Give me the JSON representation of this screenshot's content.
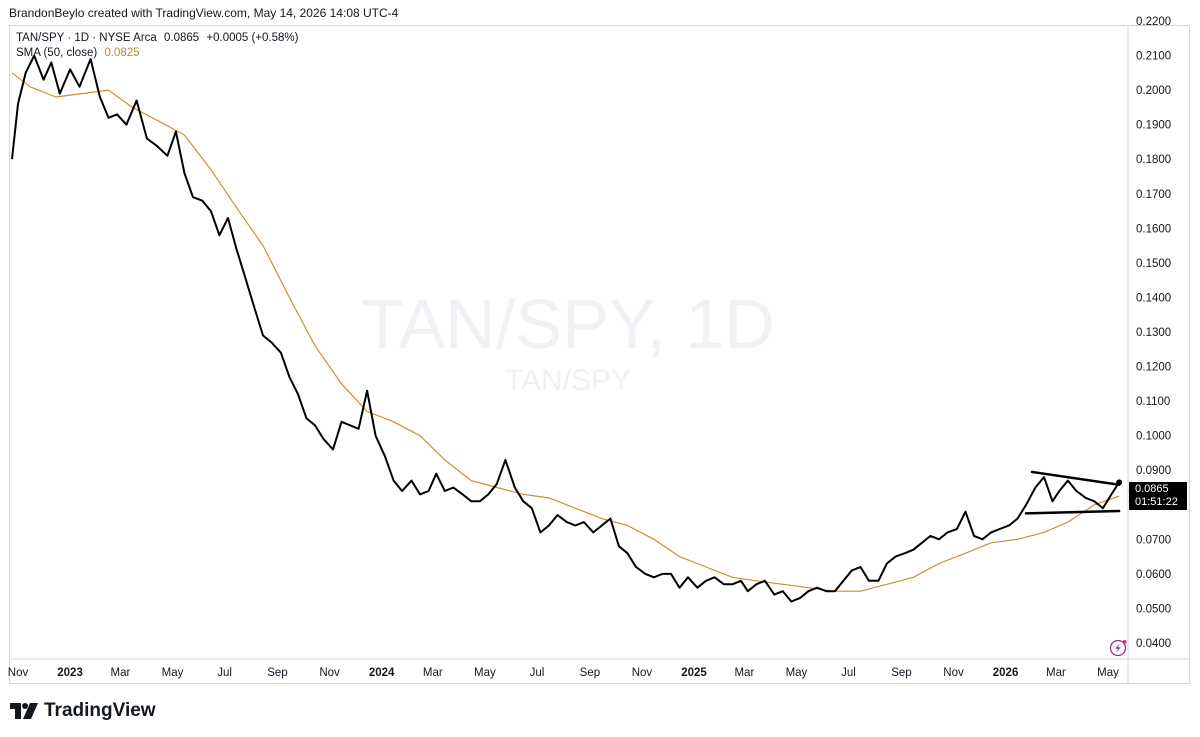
{
  "header": {
    "credit": "BrandonBeylo created with TradingView.com, May 14, 2026 14:08 UTC-4"
  },
  "legend": {
    "symbol_line": "TAN/SPY · 1D · NYSE Arca",
    "last": "0.0865",
    "change": "+0.0005 (+0.58%)",
    "sma_label": "SMA (50, close)",
    "sma_value": "0.0825"
  },
  "watermark": {
    "main": "TAN/SPY, 1D",
    "sub": "TAN/SPY"
  },
  "price_tag": {
    "price": "0.0865",
    "countdown": "01:51:22"
  },
  "footer": {
    "brand": "TradingView"
  },
  "colors": {
    "price_line": "#000000",
    "sma_line": "#c8913a",
    "grid": "#e0e3eb",
    "axis_text": "#131722"
  },
  "chart_data": {
    "type": "line",
    "title": "TAN/SPY · 1D · NYSE Arca",
    "xlabel": "",
    "ylabel": "",
    "ylim": [
      0.035,
      0.225
    ],
    "y_ticks": [
      "0.2200",
      "0.2100",
      "0.2000",
      "0.1900",
      "0.1800",
      "0.1700",
      "0.1600",
      "0.1500",
      "0.1400",
      "0.1300",
      "0.1200",
      "0.1100",
      "0.1000",
      "0.0900",
      "0.0800",
      "0.0700",
      "0.0600",
      "0.0500",
      "0.0400"
    ],
    "x_ticks": [
      "Nov",
      "2023",
      "Mar",
      "May",
      "Jul",
      "Sep",
      "Nov",
      "2024",
      "Mar",
      "May",
      "Jul",
      "Sep",
      "Nov",
      "2025",
      "Mar",
      "May",
      "Jul",
      "Sep",
      "Nov",
      "2026",
      "Mar",
      "May"
    ],
    "x_tick_dates": [
      "2022-11-01",
      "2023-01-01",
      "2023-03-01",
      "2023-05-01",
      "2023-07-01",
      "2023-09-01",
      "2023-11-01",
      "2024-01-01",
      "2024-03-01",
      "2024-05-01",
      "2024-07-01",
      "2024-09-01",
      "2024-11-01",
      "2025-01-01",
      "2025-03-01",
      "2025-05-01",
      "2025-07-01",
      "2025-09-01",
      "2025-11-01",
      "2026-01-01",
      "2026-03-01",
      "2026-05-01"
    ],
    "grid": false,
    "series": [
      {
        "name": "TAN/SPY",
        "x": [
          "2022-10-25",
          "2022-11-01",
          "2022-11-10",
          "2022-11-20",
          "2022-12-01",
          "2022-12-10",
          "2022-12-20",
          "2023-01-01",
          "2023-01-12",
          "2023-01-25",
          "2023-02-05",
          "2023-02-15",
          "2023-02-25",
          "2023-03-08",
          "2023-03-20",
          "2023-04-01",
          "2023-04-12",
          "2023-04-25",
          "2023-05-05",
          "2023-05-15",
          "2023-05-25",
          "2023-06-05",
          "2023-06-15",
          "2023-06-25",
          "2023-07-05",
          "2023-07-15",
          "2023-07-25",
          "2023-08-05",
          "2023-08-15",
          "2023-08-25",
          "2023-09-05",
          "2023-09-15",
          "2023-09-25",
          "2023-10-05",
          "2023-10-15",
          "2023-10-25",
          "2023-11-05",
          "2023-11-15",
          "2023-11-25",
          "2023-12-05",
          "2023-12-15",
          "2023-12-25",
          "2024-01-05",
          "2024-01-15",
          "2024-01-25",
          "2024-02-05",
          "2024-02-15",
          "2024-02-25",
          "2024-03-05",
          "2024-03-15",
          "2024-03-25",
          "2024-04-05",
          "2024-04-15",
          "2024-04-25",
          "2024-05-05",
          "2024-05-15",
          "2024-05-25",
          "2024-06-05",
          "2024-06-15",
          "2024-06-25",
          "2024-07-05",
          "2024-07-15",
          "2024-07-25",
          "2024-08-05",
          "2024-08-15",
          "2024-08-25",
          "2024-09-05",
          "2024-09-15",
          "2024-09-25",
          "2024-10-05",
          "2024-10-15",
          "2024-10-25",
          "2024-11-05",
          "2024-11-15",
          "2024-11-25",
          "2024-12-05",
          "2024-12-15",
          "2024-12-25",
          "2025-01-05",
          "2025-01-15",
          "2025-01-25",
          "2025-02-05",
          "2025-02-15",
          "2025-02-25",
          "2025-03-05",
          "2025-03-15",
          "2025-03-25",
          "2025-04-05",
          "2025-04-15",
          "2025-04-25",
          "2025-05-05",
          "2025-05-15",
          "2025-05-25",
          "2025-06-05",
          "2025-06-15",
          "2025-06-25",
          "2025-07-05",
          "2025-07-15",
          "2025-07-25",
          "2025-08-05",
          "2025-08-15",
          "2025-08-25",
          "2025-09-05",
          "2025-09-15",
          "2025-09-25",
          "2025-10-05",
          "2025-10-15",
          "2025-10-25",
          "2025-11-05",
          "2025-11-15",
          "2025-11-25",
          "2025-12-05",
          "2025-12-15",
          "2025-12-25",
          "2026-01-05",
          "2026-01-15",
          "2026-01-25",
          "2026-02-05",
          "2026-02-15",
          "2026-02-25",
          "2026-03-05",
          "2026-03-15",
          "2026-03-25",
          "2026-04-05",
          "2026-04-15",
          "2026-04-25",
          "2026-05-05",
          "2026-05-14"
        ],
        "values": [
          0.18,
          0.196,
          0.205,
          0.21,
          0.203,
          0.208,
          0.199,
          0.206,
          0.201,
          0.209,
          0.198,
          0.192,
          0.193,
          0.19,
          0.197,
          0.186,
          0.184,
          0.181,
          0.188,
          0.176,
          0.169,
          0.168,
          0.165,
          0.158,
          0.163,
          0.154,
          0.146,
          0.137,
          0.129,
          0.127,
          0.124,
          0.117,
          0.112,
          0.105,
          0.103,
          0.099,
          0.096,
          0.104,
          0.103,
          0.102,
          0.113,
          0.1,
          0.094,
          0.087,
          0.084,
          0.087,
          0.083,
          0.084,
          0.089,
          0.084,
          0.085,
          0.083,
          0.081,
          0.081,
          0.083,
          0.086,
          0.093,
          0.085,
          0.081,
          0.079,
          0.072,
          0.074,
          0.077,
          0.075,
          0.074,
          0.075,
          0.072,
          0.074,
          0.076,
          0.068,
          0.066,
          0.062,
          0.06,
          0.059,
          0.06,
          0.06,
          0.056,
          0.059,
          0.056,
          0.058,
          0.059,
          0.057,
          0.057,
          0.058,
          0.055,
          0.057,
          0.058,
          0.054,
          0.055,
          0.052,
          0.053,
          0.055,
          0.056,
          0.055,
          0.055,
          0.058,
          0.061,
          0.062,
          0.058,
          0.058,
          0.063,
          0.065,
          0.066,
          0.067,
          0.069,
          0.071,
          0.07,
          0.072,
          0.073,
          0.078,
          0.071,
          0.07,
          0.072,
          0.073,
          0.074,
          0.076,
          0.08,
          0.085,
          0.088,
          0.081,
          0.084,
          0.087,
          0.084,
          0.082,
          0.081,
          0.079,
          0.083,
          0.0865
        ]
      },
      {
        "name": "SMA (50, close)",
        "x": [
          "2022-10-25",
          "2022-11-15",
          "2022-12-15",
          "2023-01-15",
          "2023-02-15",
          "2023-03-15",
          "2023-04-15",
          "2023-05-15",
          "2023-06-15",
          "2023-07-15",
          "2023-08-15",
          "2023-09-15",
          "2023-10-15",
          "2023-11-15",
          "2023-12-15",
          "2024-01-15",
          "2024-02-15",
          "2024-03-15",
          "2024-04-15",
          "2024-05-15",
          "2024-06-15",
          "2024-07-15",
          "2024-08-15",
          "2024-09-15",
          "2024-10-15",
          "2024-11-15",
          "2024-12-15",
          "2025-01-15",
          "2025-02-15",
          "2025-03-15",
          "2025-04-15",
          "2025-05-15",
          "2025-06-15",
          "2025-07-15",
          "2025-08-15",
          "2025-09-15",
          "2025-10-15",
          "2025-11-15",
          "2025-12-15",
          "2026-01-15",
          "2026-02-15",
          "2026-03-15",
          "2026-04-15",
          "2026-05-14"
        ],
        "values": [
          0.205,
          0.201,
          0.198,
          0.199,
          0.2,
          0.195,
          0.191,
          0.187,
          0.177,
          0.166,
          0.155,
          0.14,
          0.126,
          0.115,
          0.107,
          0.104,
          0.1,
          0.093,
          0.087,
          0.085,
          0.083,
          0.082,
          0.079,
          0.076,
          0.074,
          0.07,
          0.065,
          0.062,
          0.059,
          0.058,
          0.057,
          0.056,
          0.055,
          0.055,
          0.057,
          0.059,
          0.063,
          0.066,
          0.069,
          0.07,
          0.072,
          0.075,
          0.08,
          0.0825
        ]
      }
    ],
    "annotations": [
      {
        "type": "trendline",
        "name": "upper-trendline",
        "from": [
          "2026-02-01",
          0.0895
        ],
        "to": [
          "2026-05-14",
          0.0858
        ]
      },
      {
        "type": "trendline",
        "name": "lower-trendline",
        "from": [
          "2026-01-25",
          0.0775
        ],
        "to": [
          "2026-05-14",
          0.0782
        ]
      }
    ]
  }
}
